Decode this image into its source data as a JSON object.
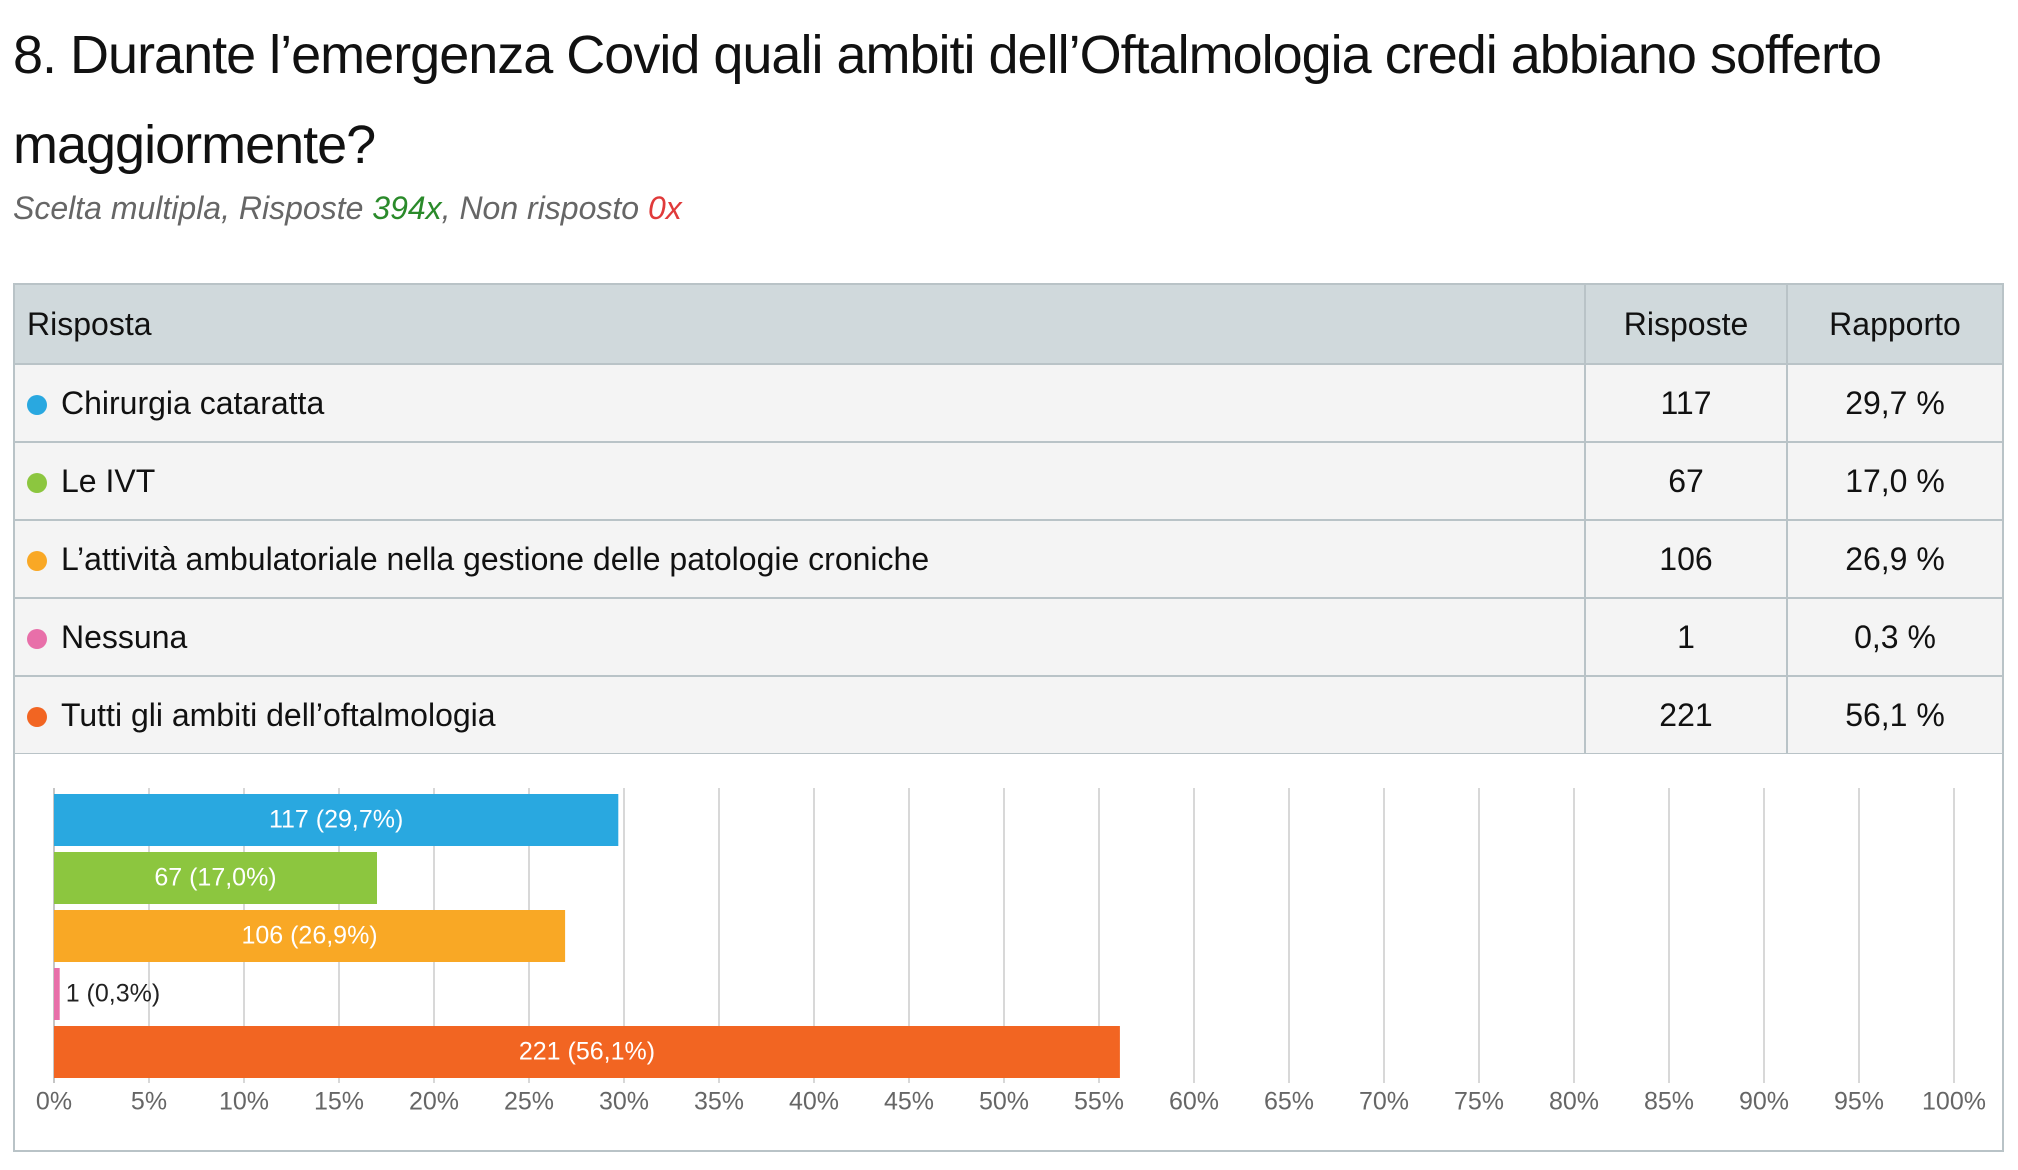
{
  "header": {
    "title": "8. Durante l’emergenza Covid quali ambiti dell’Oftalmologia credi abbiano sofferto maggiormente?",
    "subtitle": [
      "Scelta multipla, Risposte ",
      "394x",
      ", Non risposto ",
      "0x"
    ]
  },
  "table": {
    "columns": [
      "Risposta",
      "Risposte",
      "Rapporto"
    ],
    "rows": [
      {
        "label": "Chirurgia cataratta",
        "count": 117,
        "ratio": {
          "value": 29.7,
          "label": "29,7 %"
        }
      },
      {
        "label": "Le IVT",
        "count": 67,
        "ratio": {
          "value": 17.0,
          "label": "17,0 %"
        }
      },
      {
        "label": "L’attività ambulatoriale nella gestione delle patologie croniche",
        "count": 106,
        "ratio": {
          "value": 26.9,
          "label": "26,9 %"
        }
      },
      {
        "label": "Nessuna",
        "count": 1,
        "ratio": {
          "value": 0.3,
          "label": "0,3 %"
        }
      },
      {
        "label": "Tutti gli ambiti dell’oftalmologia",
        "count": 221,
        "ratio": {
          "value": 56.1,
          "label": "56,1 %"
        }
      }
    ]
  },
  "chart_data": {
    "type": "bar",
    "orientation": "horizontal",
    "values": [
      29.7,
      17.0,
      26.9,
      0.3,
      56.1
    ],
    "value_labels": [
      "117 (29,7%)",
      "67 (17,0%)",
      "106 (26,9%)",
      "1 (0,3%)",
      "221 (56,1%)"
    ],
    "colors": [
      "#29a8e0",
      "#8cc63f",
      "#f9a825",
      "#e86fa9",
      "#f26522"
    ],
    "xlim": [
      0,
      100
    ],
    "xticks": [
      {
        "value": 0,
        "label": "0%"
      },
      {
        "value": 5,
        "label": "5%"
      },
      {
        "value": 10,
        "label": "10%"
      },
      {
        "value": 15,
        "label": "15%"
      },
      {
        "value": 20,
        "label": "20%"
      },
      {
        "value": 25,
        "label": "25%"
      },
      {
        "value": 30,
        "label": "30%"
      },
      {
        "value": 35,
        "label": "35%"
      },
      {
        "value": 40,
        "label": "40%"
      },
      {
        "value": 45,
        "label": "45%"
      },
      {
        "value": 50,
        "label": "50%"
      },
      {
        "value": 55,
        "label": "55%"
      },
      {
        "value": 60,
        "label": "60%"
      },
      {
        "value": 65,
        "label": "65%"
      },
      {
        "value": 70,
        "label": "70%"
      },
      {
        "value": 75,
        "label": "75%"
      },
      {
        "value": 80,
        "label": "80%"
      },
      {
        "value": 85,
        "label": "85%"
      },
      {
        "value": 90,
        "label": "90%"
      },
      {
        "value": 95,
        "label": "95%"
      },
      {
        "value": 100,
        "label": "100%"
      }
    ],
    "grid": true
  }
}
